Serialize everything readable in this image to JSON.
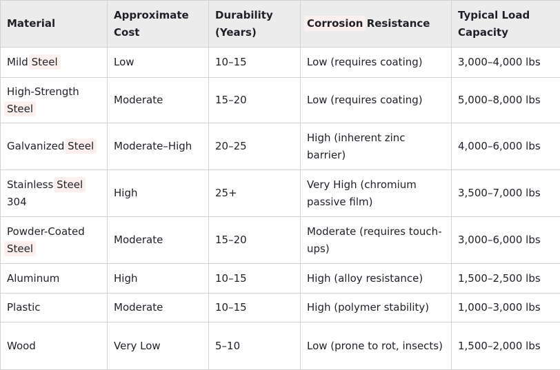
{
  "colors": {
    "page_bg": "#ffffff",
    "header_bg": "#ececec",
    "grid_border": "#d2d2d2",
    "text": "#1f2028",
    "search_highlight": "#fcf0ee"
  },
  "chart_data": {
    "type": "table",
    "title": "",
    "columns": [
      "Material",
      "Approximate Cost",
      "Durability (Years)",
      "Corrosion Resistance",
      "Typical Load Capacity"
    ],
    "rows": [
      [
        "Mild Steel",
        "Low",
        "10–15",
        "Low (requires coating)",
        "3,000–4,000 lbs"
      ],
      [
        "High-Strength Steel",
        "Moderate",
        "15–20",
        "Low (requires coating)",
        "5,000–8,000 lbs"
      ],
      [
        "Galvanized Steel",
        "Moderate–High",
        "20–25",
        "High (inherent zinc barrier)",
        "4,000–6,000 lbs"
      ],
      [
        "Stainless Steel 304",
        "High",
        "25+",
        "Very High (chromium passive film)",
        "3,500–7,000 lbs"
      ],
      [
        "Powder-Coated Steel",
        "Moderate",
        "15–20",
        "Moderate (requires touch-ups)",
        "3,000–6,000 lbs"
      ],
      [
        "Aluminum",
        "High",
        "10–15",
        "High (alloy resistance)",
        "1,500–2,500 lbs"
      ],
      [
        "Plastic",
        "Moderate",
        "10–15",
        "High (polymer stability)",
        "1,000–3,000 lbs"
      ],
      [
        "Wood",
        "Very Low",
        "5–10",
        "Low (prone to rot, insects)",
        "1,500–2,000 lbs"
      ]
    ],
    "highlighted_words": [
      "Steel",
      "Corrosion"
    ]
  }
}
